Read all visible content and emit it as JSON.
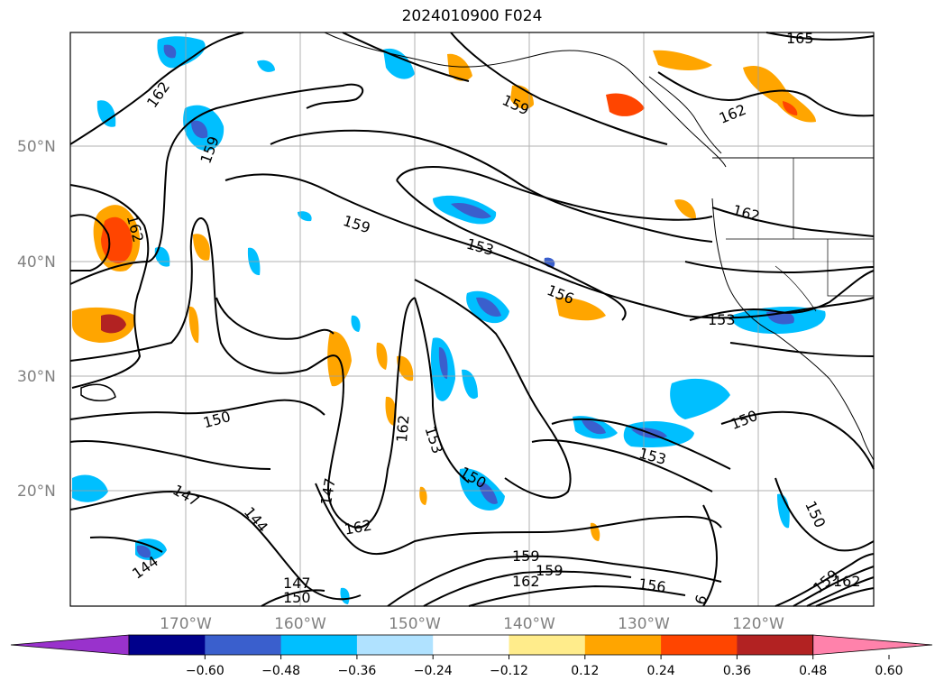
{
  "title": "2024010900 F024",
  "map": {
    "lat_labels": [
      "50°N",
      "40°N",
      "30°N",
      "20°N"
    ],
    "lon_labels": [
      "170°W",
      "160°W",
      "150°W",
      "140°W",
      "130°W",
      "120°W"
    ],
    "contour_labels": [
      "165",
      "162",
      "159",
      "159",
      "162",
      "162",
      "159",
      "153",
      "156",
      "153",
      "162",
      "150",
      "153",
      "150",
      "147",
      "144",
      "144",
      "147",
      "162",
      "150",
      "153",
      "159",
      "162",
      "156",
      "159",
      "162",
      "147",
      "150",
      "150",
      "6"
    ]
  },
  "colorbar": {
    "ticks": [
      "−0.60",
      "−0.48",
      "−0.36",
      "−0.24",
      "−0.12",
      "0.12",
      "0.24",
      "0.36",
      "0.48",
      "0.60"
    ],
    "colors": [
      "#9932cc",
      "#00008b",
      "#3a5fcd",
      "#00bfff",
      "#b0e2ff",
      "#ffffff",
      "#ffec8b",
      "#ffa500",
      "#ff4500",
      "#b22222",
      "#ff82ab"
    ]
  }
}
